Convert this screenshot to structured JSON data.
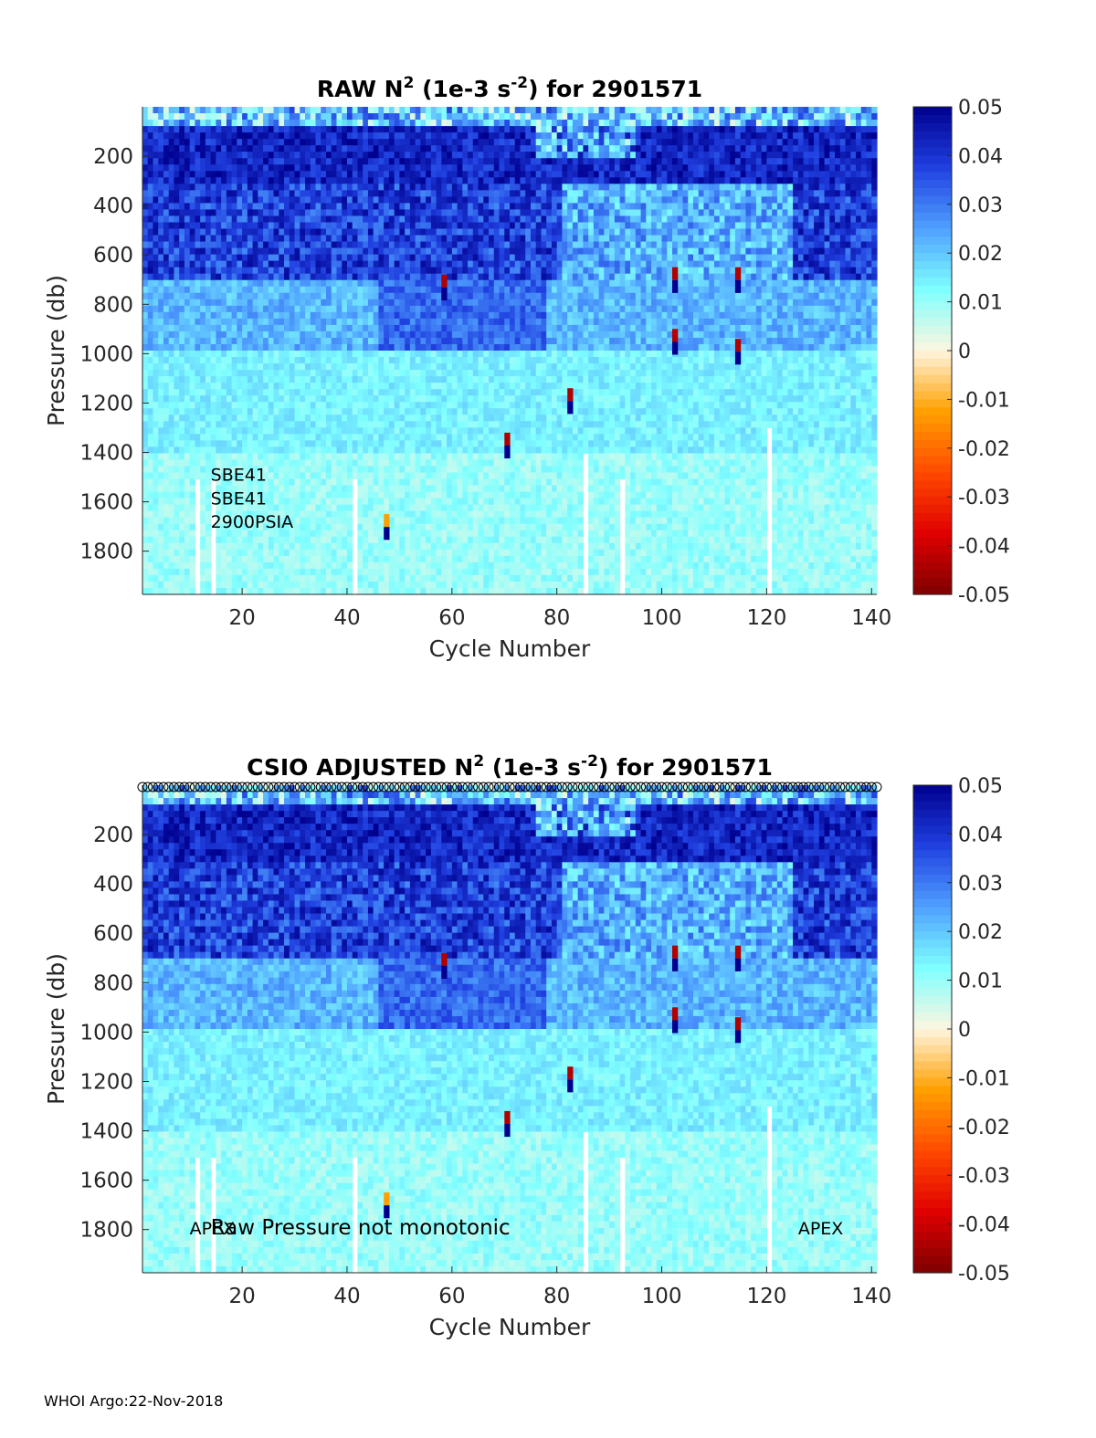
{
  "footer": "WHOI Argo:22-Nov-2018",
  "colors": {
    "colormap": [
      "#7f0000",
      "#e00000",
      "#ff4a00",
      "#ffa000",
      "#fff6e0",
      "#7fffff",
      "#4fa0ff",
      "#2040e0",
      "#00008f"
    ],
    "axis": "#262626"
  },
  "chart_data": [
    {
      "type": "heatmap",
      "title_parts": [
        "RAW N",
        "2",
        " (1e-3 s",
        "-2",
        ") for 2901571"
      ],
      "xlabel": "Cycle Number",
      "ylabel": "Pressure (db)",
      "xlim": [
        1,
        141
      ],
      "ylim": [
        1975,
        0
      ],
      "xticks": [
        20,
        40,
        60,
        80,
        100,
        120,
        140
      ],
      "yticks": [
        200,
        400,
        600,
        800,
        1000,
        1200,
        1400,
        1600,
        1800
      ],
      "colorbar": {
        "min": -0.05,
        "max": 0.05,
        "ticks": [
          "0.05",
          "0.04",
          "0.03",
          "0.02",
          "0.01",
          "0",
          "-0.01",
          "-0.02",
          "-0.03",
          "-0.04",
          "-0.05"
        ]
      },
      "annotations": [
        {
          "text": "SBE41",
          "x": 14,
          "y": 1515
        },
        {
          "text": "SBE41",
          "x": 14,
          "y": 1610
        },
        {
          "text": "2900PSIA",
          "x": 14,
          "y": 1705
        }
      ],
      "sampling_markers": false
    },
    {
      "type": "heatmap",
      "title_parts": [
        "CSIO  ADJUSTED N",
        "2",
        " (1e-3 s",
        "-2",
        ") for 2901571"
      ],
      "xlabel": "Cycle Number",
      "ylabel": "Pressure (db)",
      "xlim": [
        1,
        141
      ],
      "ylim": [
        1975,
        0
      ],
      "xticks": [
        20,
        40,
        60,
        80,
        100,
        120,
        140
      ],
      "yticks": [
        200,
        400,
        600,
        800,
        1000,
        1200,
        1400,
        1600,
        1800
      ],
      "colorbar": {
        "min": -0.05,
        "max": 0.05,
        "ticks": [
          "0.05",
          "0.04",
          "0.03",
          "0.02",
          "0.01",
          "0",
          "-0.01",
          "-0.02",
          "-0.03",
          "-0.04",
          "-0.05"
        ]
      },
      "annotations": [
        {
          "text": "APEX",
          "x": 10,
          "y": 1820
        },
        {
          "text": "Raw Pressure not monotonic",
          "x": 14,
          "y": 1820
        },
        {
          "text": "APEX",
          "x": 126,
          "y": 1820
        }
      ],
      "sampling_markers": true
    }
  ]
}
